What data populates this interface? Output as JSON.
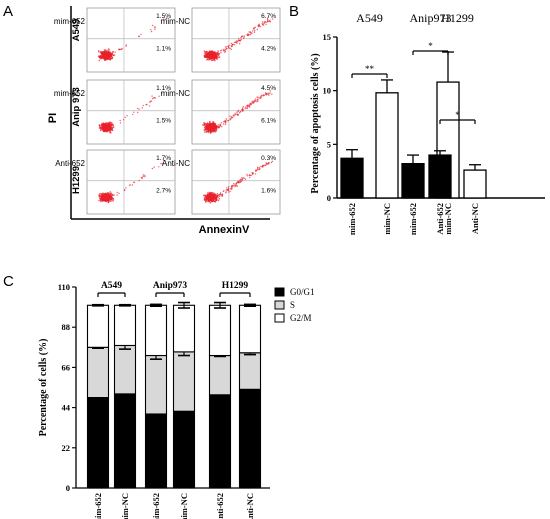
{
  "panel_letters": {
    "a": "A",
    "b": "B",
    "c": "C"
  },
  "panel_a": {
    "y_axis_label": "PI",
    "x_axis_label": "AnnexinV",
    "row_labels": [
      "A549",
      "Anip 973",
      "H1299"
    ],
    "plots": [
      {
        "sample": "mim-652",
        "upper_right": "1.5%",
        "lower_right": "1.1%"
      },
      {
        "sample": "mim-NC",
        "upper_right": "6.7%",
        "lower_right": "4.2%"
      },
      {
        "sample": "mim-652",
        "upper_right": "1.1%",
        "lower_right": "1.5%"
      },
      {
        "sample": "mim-NC",
        "upper_right": "4.5%",
        "lower_right": "6.1%"
      },
      {
        "sample": "Anti-652",
        "upper_right": "1.7%",
        "lower_right": "2.7%"
      },
      {
        "sample": "Anti-NC",
        "upper_right": "0.3%",
        "lower_right": "1.6%"
      }
    ],
    "colors": {
      "dots": "#e8212b",
      "gate": "#b8b8b8"
    }
  },
  "chart_data": [
    {
      "type": "bar",
      "panel": "B",
      "ylabel": "Percentage of apoptosis cells (%)",
      "ylim": [
        0,
        15
      ],
      "yticks": [
        0,
        5,
        10,
        15
      ],
      "groups": [
        {
          "name": "A549",
          "significance": "**"
        },
        {
          "name": "Anip973",
          "significance": "*"
        },
        {
          "name": "H1299",
          "significance": "*"
        }
      ],
      "categories": [
        "mim-652",
        "mim-NC",
        "mim-652",
        "mim-NC",
        "Anti-652",
        "Anti-NC"
      ],
      "values": [
        3.7,
        9.8,
        3.2,
        10.8,
        4.0,
        2.6
      ],
      "errors": [
        0.8,
        1.2,
        0.8,
        2.8,
        0.4,
        0.5
      ],
      "fills": [
        "#000000",
        "#ffffff",
        "#000000",
        "#ffffff",
        "#000000",
        "#ffffff"
      ]
    },
    {
      "type": "bar",
      "stacked": true,
      "panel": "C",
      "ylabel": "Percentage of cells  (%)",
      "ylim": [
        0,
        110
      ],
      "yticks": [
        0,
        22,
        44,
        66,
        88,
        110
      ],
      "yticklabels": [
        "0",
        "22",
        "44",
        "66",
        "88",
        "110"
      ],
      "groups": [
        "A549",
        "Anip973",
        "H1299"
      ],
      "categories": [
        "mim-652",
        "mim-NC",
        "mim-652",
        "mim-NC",
        "Anti-652",
        "Anti-NC"
      ],
      "series": [
        {
          "name": "G0/G1",
          "color": "#000000",
          "values": [
            49.5,
            51.5,
            40.5,
            42,
            51,
            54
          ],
          "errors": [
            1,
            1.5,
            1.5,
            1,
            1,
            0.5
          ]
        },
        {
          "name": "S",
          "color": "#d8d8d8",
          "values": [
            27.5,
            26.5,
            32,
            32.5,
            21.5,
            20
          ],
          "errors": [
            0.5,
            2,
            2,
            2,
            0.5,
            1
          ]
        },
        {
          "name": "G2/M",
          "color": "#ffffff",
          "values": [
            23,
            22,
            27.5,
            25.5,
            27.5,
            26
          ],
          "errors": [
            0.3,
            0.3,
            0.5,
            1.5,
            1.5,
            0.5
          ]
        }
      ]
    }
  ]
}
